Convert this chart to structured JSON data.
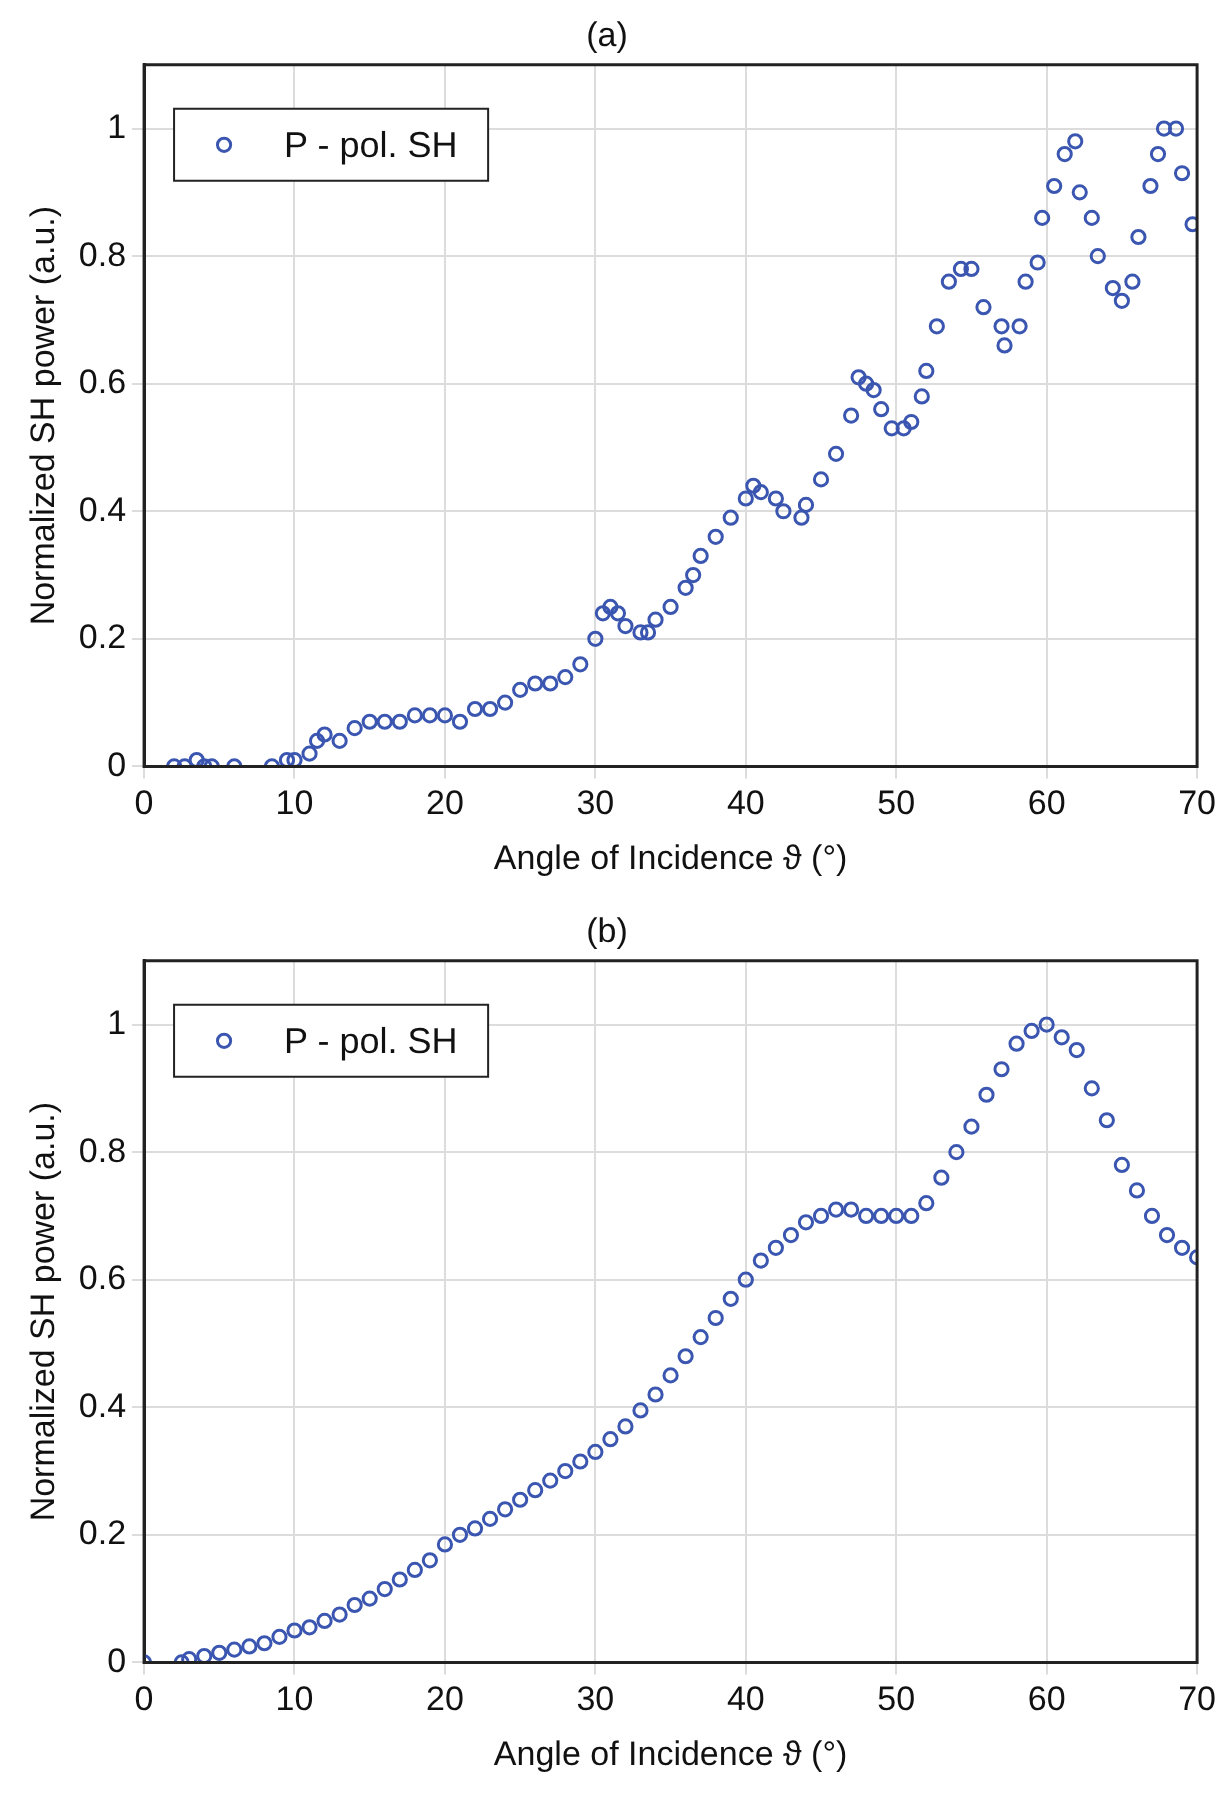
{
  "chart_data": [
    {
      "type": "scatter",
      "title": "(a)",
      "xlabel": "Angle of Incidence ϑ (°)",
      "ylabel": "Normalized SH power (a.u.)",
      "xlim": [
        0,
        70
      ],
      "ylim": [
        0,
        1.1
      ],
      "xticks": [
        0,
        10,
        20,
        30,
        40,
        50,
        60,
        70
      ],
      "yticks": [
        0,
        0.2,
        0.4,
        0.6,
        0.8,
        1
      ],
      "grid": true,
      "legend": "top left",
      "marker": "circle",
      "series": [
        {
          "name": "P - pol. SH",
          "color": "#3a56b0",
          "x": [
            2,
            2.7,
            3.5,
            4,
            4.5,
            6,
            8.5,
            9.5,
            10,
            11,
            11.5,
            12,
            13,
            14,
            15,
            16,
            17,
            18,
            19,
            20,
            21,
            22,
            23,
            24,
            25,
            26,
            27,
            28,
            29,
            30,
            30.5,
            31,
            31.5,
            32,
            33,
            33.5,
            34,
            35,
            36,
            36.5,
            37,
            38,
            39,
            40,
            40.5,
            41,
            42,
            42.5,
            43.7,
            44,
            45,
            46,
            47,
            47.5,
            48,
            48.5,
            49,
            49.7,
            50.5,
            51,
            51.7,
            52,
            52.7,
            53.5,
            54.3,
            55,
            55.8,
            57,
            57.2,
            58.2,
            58.6,
            59.4,
            59.7,
            60.5,
            61.2,
            61.9,
            62.2,
            63,
            63.4,
            64.4,
            65,
            65.7,
            66.1,
            66.9,
            67.4,
            67.8,
            68.6,
            69,
            69.7
          ],
          "values": [
            0,
            0,
            0.01,
            0,
            0,
            0,
            0,
            0.01,
            0.01,
            0.02,
            0.04,
            0.05,
            0.04,
            0.06,
            0.07,
            0.07,
            0.07,
            0.08,
            0.08,
            0.08,
            0.07,
            0.09,
            0.09,
            0.1,
            0.12,
            0.13,
            0.13,
            0.14,
            0.16,
            0.2,
            0.24,
            0.25,
            0.24,
            0.22,
            0.21,
            0.21,
            0.23,
            0.25,
            0.28,
            0.3,
            0.33,
            0.36,
            0.39,
            0.42,
            0.44,
            0.43,
            0.42,
            0.4,
            0.39,
            0.41,
            0.45,
            0.49,
            0.55,
            0.61,
            0.6,
            0.59,
            0.56,
            0.53,
            0.53,
            0.54,
            0.58,
            0.62,
            0.69,
            0.76,
            0.78,
            0.78,
            0.72,
            0.69,
            0.66,
            0.69,
            0.76,
            0.79,
            0.86,
            0.91,
            0.96,
            0.98,
            0.9,
            0.86,
            0.8,
            0.75,
            0.73,
            0.76,
            0.83,
            0.91,
            0.96,
            1,
            1,
            0.93,
            0.85
          ]
        }
      ]
    },
    {
      "type": "scatter",
      "title": "(b)",
      "xlabel": "Angle of Incidence ϑ (°)",
      "ylabel": "Normalized SH power (a.u.)",
      "xlim": [
        0,
        70
      ],
      "ylim": [
        0,
        1.1
      ],
      "xticks": [
        0,
        10,
        20,
        30,
        40,
        50,
        60,
        70
      ],
      "yticks": [
        0,
        0.2,
        0.4,
        0.6,
        0.8,
        1
      ],
      "grid": true,
      "legend": "top left",
      "marker": "circle",
      "series": [
        {
          "name": "P - pol. SH",
          "color": "#3a56b0",
          "x": [
            0,
            2.5,
            3,
            4,
            5,
            6,
            7,
            8,
            9,
            10,
            11,
            12,
            13,
            14,
            15,
            16,
            17,
            18,
            19,
            20,
            21,
            22,
            23,
            24,
            25,
            26,
            27,
            28,
            29,
            30,
            31,
            32,
            33,
            34,
            35,
            36,
            37,
            38,
            39,
            40,
            41,
            42,
            43,
            44,
            45,
            46,
            47,
            48,
            49,
            50,
            51,
            52,
            53,
            54,
            55,
            56,
            57,
            58,
            59,
            60,
            61,
            62,
            63,
            64,
            65,
            66,
            67,
            68,
            69,
            70
          ],
          "values": [
            0,
            0,
            0.005,
            0.01,
            0.015,
            0.02,
            0.025,
            0.03,
            0.04,
            0.05,
            0.055,
            0.065,
            0.075,
            0.09,
            0.1,
            0.115,
            0.13,
            0.145,
            0.16,
            0.185,
            0.2,
            0.21,
            0.225,
            0.24,
            0.255,
            0.27,
            0.285,
            0.3,
            0.315,
            0.33,
            0.35,
            0.37,
            0.395,
            0.42,
            0.45,
            0.48,
            0.51,
            0.54,
            0.57,
            0.6,
            0.63,
            0.65,
            0.67,
            0.69,
            0.7,
            0.71,
            0.71,
            0.7,
            0.7,
            0.7,
            0.7,
            0.72,
            0.76,
            0.8,
            0.84,
            0.89,
            0.93,
            0.97,
            0.99,
            1,
            0.98,
            0.96,
            0.9,
            0.85,
            0.78,
            0.74,
            0.7,
            0.67,
            0.65,
            0.635
          ]
        }
      ]
    }
  ]
}
